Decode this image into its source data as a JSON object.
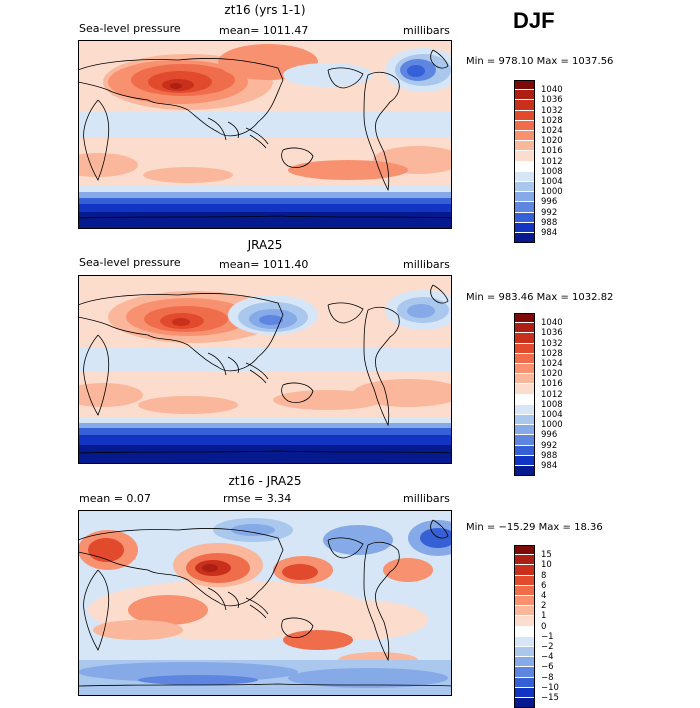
{
  "season": "DJF",
  "panels": [
    {
      "id": "model",
      "title": "zt16 (yrs 1-1)",
      "left_label": "Sea-level pressure",
      "center_label": "mean= 1011.47",
      "right_label": "millibars",
      "stats": "Min = 978.10 Max = 1037.56",
      "legend": {
        "labels": [
          "1040",
          "1036",
          "1032",
          "1028",
          "1024",
          "1020",
          "1016",
          "1012",
          "1008",
          "1004",
          "1000",
          "996",
          "992",
          "988",
          "984"
        ],
        "colors": [
          "#7d0a07",
          "#ad1e13",
          "#c9301c",
          "#e24a2d",
          "#f06d4b",
          "#f8916f",
          "#fbb79b",
          "#fcdccd",
          "#ffffff",
          "#d6e6f6",
          "#aac8ee",
          "#86a9e8",
          "#5e85e0",
          "#3560d6",
          "#1134c2",
          "#061a8f"
        ]
      }
    },
    {
      "id": "obs",
      "title": "JRA25",
      "left_label": "Sea-level pressure",
      "center_label": "mean= 1011.40",
      "right_label": "millibars",
      "stats": "Min = 983.46 Max = 1032.82",
      "legend": {
        "labels": [
          "1040",
          "1036",
          "1032",
          "1028",
          "1024",
          "1020",
          "1016",
          "1012",
          "1008",
          "1004",
          "1000",
          "996",
          "992",
          "988",
          "984"
        ],
        "colors": [
          "#7d0a07",
          "#ad1e13",
          "#c9301c",
          "#e24a2d",
          "#f06d4b",
          "#f8916f",
          "#fbb79b",
          "#fcdccd",
          "#ffffff",
          "#d6e6f6",
          "#aac8ee",
          "#86a9e8",
          "#5e85e0",
          "#3560d6",
          "#1134c2",
          "#061a8f"
        ]
      }
    },
    {
      "id": "diff",
      "title": "zt16 - JRA25",
      "left_label": "mean =    0.07",
      "center_label": "rmse =    3.34",
      "right_label": "millibars",
      "stats": "Min = −15.29 Max =  18.36",
      "legend": {
        "labels": [
          "15",
          "10",
          "8",
          "6",
          "4",
          "2",
          "1",
          "0",
          "−1",
          "−2",
          "−4",
          "−6",
          "−8",
          "−10",
          "−15"
        ],
        "colors": [
          "#7d0a07",
          "#ad1e13",
          "#c9301c",
          "#e24a2d",
          "#f06d4b",
          "#f8916f",
          "#fbb79b",
          "#fcdccd",
          "#ffffff",
          "#d6e6f6",
          "#aac8ee",
          "#86a9e8",
          "#5e85e0",
          "#3560d6",
          "#1134c2",
          "#061a8f"
        ]
      }
    }
  ]
}
